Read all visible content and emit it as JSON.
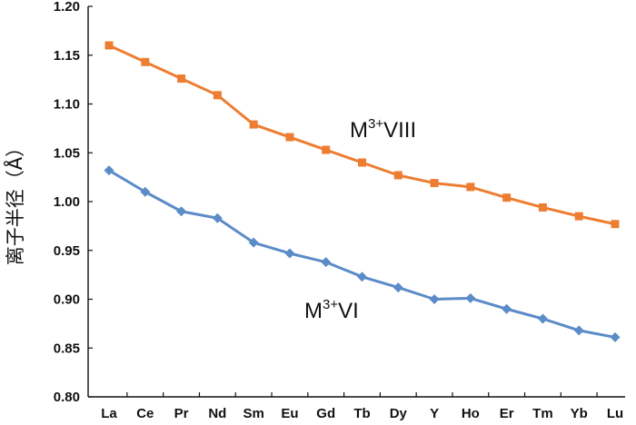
{
  "chart_data": {
    "type": "line",
    "title": "",
    "xlabel": "",
    "ylabel": "离子半径（Å）",
    "ylim": [
      0.8,
      1.2
    ],
    "yticks": [
      0.8,
      0.85,
      0.9,
      0.95,
      1.0,
      1.05,
      1.1,
      1.15,
      1.2
    ],
    "ytick_labels": [
      "0.80",
      "0.85",
      "0.90",
      "0.95",
      "1.00",
      "1.05",
      "1.10",
      "1.15",
      "1.20"
    ],
    "categories": [
      "La",
      "Ce",
      "Pr",
      "Nd",
      "Sm",
      "Eu",
      "Gd",
      "Tb",
      "Dy",
      "Y",
      "Ho",
      "Er",
      "Tm",
      "Yb",
      "Lu"
    ],
    "grid": false,
    "legend": "none",
    "series": [
      {
        "name": "M3+VIII",
        "label_main": "M",
        "label_sup": "3+",
        "label_tail": "VIII",
        "color": "#ED7D31",
        "marker": "square",
        "values": [
          1.16,
          1.143,
          1.126,
          1.109,
          1.079,
          1.066,
          1.053,
          1.04,
          1.027,
          1.019,
          1.015,
          1.004,
          0.994,
          0.985,
          0.977
        ]
      },
      {
        "name": "M3+VI",
        "label_main": "M",
        "label_sup": "3+",
        "label_tail": "VI",
        "color": "#5B8CC8",
        "marker": "diamond",
        "values": [
          1.032,
          1.01,
          0.99,
          0.983,
          0.958,
          0.947,
          0.938,
          0.923,
          0.912,
          0.9,
          0.901,
          0.89,
          0.88,
          0.868,
          0.861
        ]
      }
    ]
  }
}
